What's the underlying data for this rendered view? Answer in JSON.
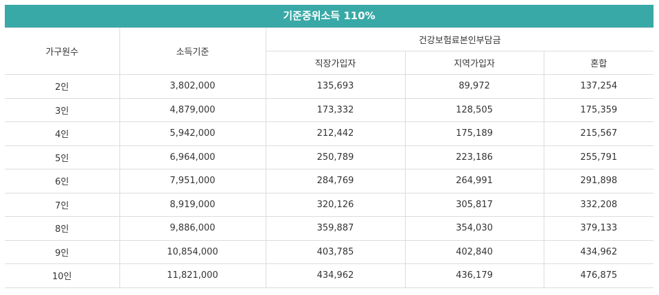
{
  "table": {
    "title": "기준중위소득 110%",
    "headers": {
      "household": "가구원수",
      "income": "소득기준",
      "premium_group": "건강보험료본인부담금",
      "workplace": "직장가입자",
      "regional": "지역가입자",
      "mixed": "혼합"
    },
    "rows": [
      {
        "household": "2인",
        "income": "3,802,000",
        "workplace": "135,693",
        "regional": "89,972",
        "mixed": "137,254"
      },
      {
        "household": "3인",
        "income": "4,879,000",
        "workplace": "173,332",
        "regional": "128,505",
        "mixed": "175,359"
      },
      {
        "household": "4인",
        "income": "5,942,000",
        "workplace": "212,442",
        "regional": "175,189",
        "mixed": "215,567"
      },
      {
        "household": "5인",
        "income": "6,964,000",
        "workplace": "250,789",
        "regional": "223,186",
        "mixed": "255,791"
      },
      {
        "household": "6인",
        "income": "7,951,000",
        "workplace": "284,769",
        "regional": "264,991",
        "mixed": "291,898"
      },
      {
        "household": "7인",
        "income": "8,919,000",
        "workplace": "320,126",
        "regional": "305,817",
        "mixed": "332,208"
      },
      {
        "household": "8인",
        "income": "9,886,000",
        "workplace": "359,887",
        "regional": "354,030",
        "mixed": "379,133"
      },
      {
        "household": "9인",
        "income": "10,854,000",
        "workplace": "403,785",
        "regional": "402,840",
        "mixed": "434,962"
      },
      {
        "household": "10인",
        "income": "11,821,000",
        "workplace": "434,962",
        "regional": "436,179",
        "mixed": "476,875"
      }
    ]
  }
}
